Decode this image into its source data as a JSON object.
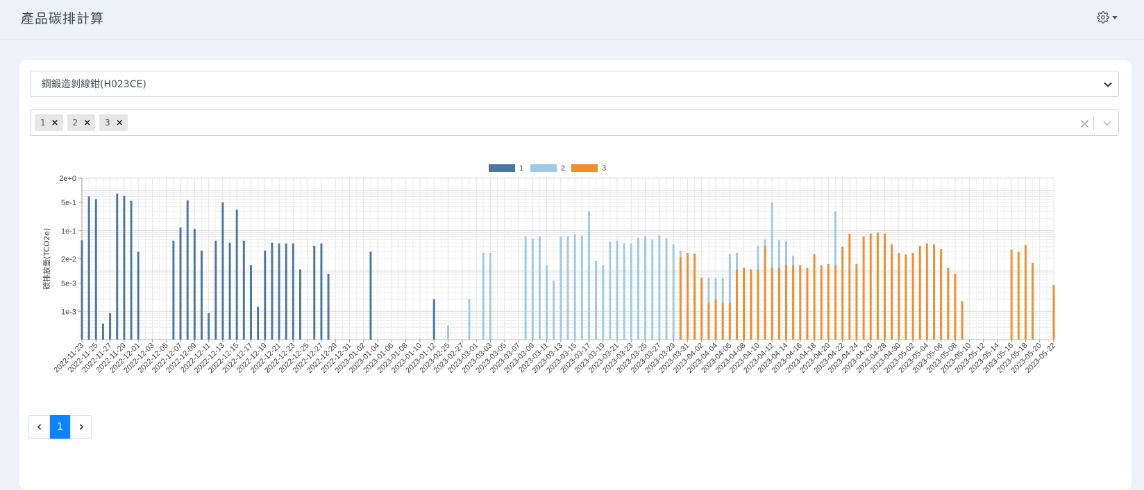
{
  "header": {
    "title": "產品碳排計算"
  },
  "product_select": {
    "value": "鋼鍛造剝線鉗(H023CE)"
  },
  "tags": [
    {
      "label": "1"
    },
    {
      "label": "2"
    },
    {
      "label": "3"
    }
  ],
  "colors": {
    "s1": "#4a78a6",
    "s2": "#9ecae6",
    "s3": "#f28e2b"
  },
  "pagination": {
    "current": "1"
  },
  "chart_data": {
    "type": "bar",
    "ylabel": "碳排放量(TCO2e)",
    "yscale": "log",
    "ylim": [
      0.0002,
      2
    ],
    "yticks": [
      {
        "value": 2,
        "label": "2e+0"
      },
      {
        "value": 0.5,
        "label": "5e-1"
      },
      {
        "value": 0.1,
        "label": "1e-1"
      },
      {
        "value": 0.02,
        "label": "2e-2"
      },
      {
        "value": 0.005,
        "label": "5e-3"
      },
      {
        "value": 0.001,
        "label": "1e-3"
      }
    ],
    "legend_position": "top-center",
    "xtick_labels": [
      "2022-11-23",
      "2022-11-25",
      "2022-11-27",
      "2022-11-29",
      "2022-12-01",
      "2022-12-03",
      "2022-12-05",
      "2022-12-07",
      "2022-12-09",
      "2022-12-11",
      "2022-12-13",
      "2022-12-15",
      "2022-12-17",
      "2022-12-19",
      "2022-12-21",
      "2022-12-23",
      "2022-12-25",
      "2022-12-27",
      "2022-12-29",
      "2022-12-31",
      "2023-01-02",
      "2023-01-04",
      "2023-01-06",
      "2023-01-08",
      "2023-01-10",
      "2023-01-12",
      "2023-02-25",
      "2023-02-27",
      "2023-03-01",
      "2023-03-03",
      "2023-03-05",
      "2023-03-07",
      "2023-03-09",
      "2023-03-11",
      "2023-03-13",
      "2023-03-15",
      "2023-03-17",
      "2023-03-19",
      "2023-03-21",
      "2023-03-23",
      "2023-03-25",
      "2023-03-27",
      "2023-03-29",
      "2023-03-31",
      "2023-04-02",
      "2023-04-04",
      "2023-04-06",
      "2023-04-08",
      "2023-04-10",
      "2023-04-12",
      "2023-04-14",
      "2023-04-16",
      "2023-04-18",
      "2023-04-20",
      "2023-04-22",
      "2023-04-24",
      "2023-04-26",
      "2023-04-28",
      "2023-04-30",
      "2023-05-02",
      "2023-05-04",
      "2023-05-06",
      "2023-05-08",
      "2023-05-10",
      "2023-05-12",
      "2023-05-14",
      "2023-05-16",
      "2023-05-18",
      "2023-05-20",
      "2023-05-22"
    ],
    "series": [
      {
        "name": "1",
        "points": [
          [
            "2022-11-23",
            0.058
          ],
          [
            "2022-11-24",
            0.7
          ],
          [
            "2022-11-25",
            0.6
          ],
          [
            "2022-11-26",
            0.0005
          ],
          [
            "2022-11-27",
            0.0009
          ],
          [
            "2022-11-28",
            0.82
          ],
          [
            "2022-11-29",
            0.72
          ],
          [
            "2022-11-30",
            0.55
          ],
          [
            "2022-12-01",
            0.03
          ],
          [
            "2022-12-06",
            0.056
          ],
          [
            "2022-12-07",
            0.12
          ],
          [
            "2022-12-08",
            0.56
          ],
          [
            "2022-12-09",
            0.11
          ],
          [
            "2022-12-10",
            0.032
          ],
          [
            "2022-12-11",
            0.0009
          ],
          [
            "2022-12-12",
            0.056
          ],
          [
            "2022-12-13",
            0.5
          ],
          [
            "2022-12-14",
            0.05
          ],
          [
            "2022-12-15",
            0.33
          ],
          [
            "2022-12-16",
            0.056
          ],
          [
            "2022-12-17",
            0.014
          ],
          [
            "2022-12-18",
            0.0013
          ],
          [
            "2022-12-19",
            0.032
          ],
          [
            "2022-12-20",
            0.05
          ],
          [
            "2022-12-21",
            0.048
          ],
          [
            "2022-12-22",
            0.048
          ],
          [
            "2022-12-23",
            0.048
          ],
          [
            "2022-12-24",
            0.011
          ],
          [
            "2022-12-26",
            0.042
          ],
          [
            "2022-12-27",
            0.048
          ],
          [
            "2022-12-28",
            0.0085
          ],
          [
            "2023-01-03",
            0.03
          ],
          [
            "2023-01-12",
            0.002
          ]
        ]
      },
      {
        "name": "2",
        "points": [
          [
            "2023-02-25",
            0.00045
          ],
          [
            "2023-02-28",
            0.002
          ],
          [
            "2023-03-02",
            0.028
          ],
          [
            "2023-03-03",
            0.028
          ],
          [
            "2023-03-08",
            0.072
          ],
          [
            "2023-03-09",
            0.063
          ],
          [
            "2023-03-10",
            0.072
          ],
          [
            "2023-03-11",
            0.014
          ],
          [
            "2023-03-12",
            0.0058
          ],
          [
            "2023-03-13",
            0.072
          ],
          [
            "2023-03-14",
            0.072
          ],
          [
            "2023-03-15",
            0.08
          ],
          [
            "2023-03-16",
            0.076
          ],
          [
            "2023-03-17",
            0.3
          ],
          [
            "2023-03-18",
            0.018
          ],
          [
            "2023-03-19",
            0.014
          ],
          [
            "2023-03-20",
            0.054
          ],
          [
            "2023-03-21",
            0.056
          ],
          [
            "2023-03-22",
            0.048
          ],
          [
            "2023-03-23",
            0.048
          ],
          [
            "2023-03-24",
            0.066
          ],
          [
            "2023-03-25",
            0.072
          ],
          [
            "2023-03-26",
            0.06
          ],
          [
            "2023-03-27",
            0.078
          ],
          [
            "2023-03-28",
            0.066
          ],
          [
            "2023-03-29",
            0.046
          ],
          [
            "2023-03-30",
            0.032
          ],
          [
            "2023-03-31",
            0.025
          ],
          [
            "2023-04-01",
            0.0085
          ],
          [
            "2023-04-02",
            0.0068
          ],
          [
            "2023-04-03",
            0.0068
          ],
          [
            "2023-04-04",
            0.0068
          ],
          [
            "2023-04-05",
            0.0068
          ],
          [
            "2023-04-06",
            0.026
          ],
          [
            "2023-04-07",
            0.028
          ],
          [
            "2023-04-08",
            0.01
          ],
          [
            "2023-04-09",
            0.0065
          ],
          [
            "2023-04-10",
            0.042
          ],
          [
            "2023-04-11",
            0.06
          ],
          [
            "2023-04-12",
            0.5
          ],
          [
            "2023-04-13",
            0.058
          ],
          [
            "2023-04-14",
            0.054
          ],
          [
            "2023-04-15",
            0.024
          ],
          [
            "2023-04-21",
            0.3
          ]
        ]
      },
      {
        "name": "3",
        "points": [
          [
            "2023-03-30",
            0.022
          ],
          [
            "2023-03-31",
            0.028
          ],
          [
            "2023-04-01",
            0.027
          ],
          [
            "2023-04-02",
            0.0068
          ],
          [
            "2023-04-03",
            0.0016
          ],
          [
            "2023-04-04",
            0.002
          ],
          [
            "2023-04-05",
            0.0016
          ],
          [
            "2023-04-06",
            0.0016
          ],
          [
            "2023-04-07",
            0.011
          ],
          [
            "2023-04-08",
            0.012
          ],
          [
            "2023-04-09",
            0.011
          ],
          [
            "2023-04-10",
            0.011
          ],
          [
            "2023-04-11",
            0.042
          ],
          [
            "2023-04-12",
            0.012
          ],
          [
            "2023-04-13",
            0.012
          ],
          [
            "2023-04-14",
            0.014
          ],
          [
            "2023-04-15",
            0.014
          ],
          [
            "2023-04-16",
            0.014
          ],
          [
            "2023-04-17",
            0.012
          ],
          [
            "2023-04-18",
            0.026
          ],
          [
            "2023-04-19",
            0.014
          ],
          [
            "2023-04-20",
            0.015
          ],
          [
            "2023-04-21",
            0.014
          ],
          [
            "2023-04-22",
            0.04
          ],
          [
            "2023-04-23",
            0.084
          ],
          [
            "2023-04-24",
            0.015
          ],
          [
            "2023-04-25",
            0.072
          ],
          [
            "2023-04-26",
            0.084
          ],
          [
            "2023-04-27",
            0.09
          ],
          [
            "2023-04-28",
            0.084
          ],
          [
            "2023-04-29",
            0.046
          ],
          [
            "2023-04-30",
            0.028
          ],
          [
            "2023-05-01",
            0.026
          ],
          [
            "2023-05-02",
            0.028
          ],
          [
            "2023-05-03",
            0.042
          ],
          [
            "2023-05-04",
            0.048
          ],
          [
            "2023-05-05",
            0.046
          ],
          [
            "2023-05-06",
            0.035
          ],
          [
            "2023-05-07",
            0.012
          ],
          [
            "2023-05-08",
            0.0085
          ],
          [
            "2023-05-09",
            0.0018
          ],
          [
            "2023-05-16",
            0.034
          ],
          [
            "2023-05-17",
            0.03
          ],
          [
            "2023-05-18",
            0.044
          ],
          [
            "2023-05-19",
            0.016
          ],
          [
            "2023-05-22",
            0.0045
          ]
        ]
      }
    ]
  }
}
